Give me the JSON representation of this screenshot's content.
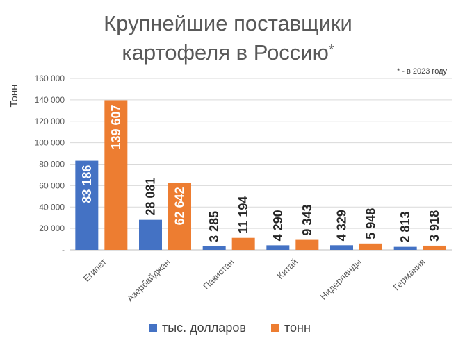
{
  "chart_data": {
    "type": "bar",
    "title_line1": "Крупнейшие поставщики",
    "title_line2": "картофеля в Россию",
    "title_mark": "*",
    "footnote": "* - в 2023 году",
    "ylabel": "Тонн",
    "xlabel": "",
    "ylim": [
      0,
      160000
    ],
    "yticks": [
      0,
      20000,
      40000,
      60000,
      80000,
      100000,
      120000,
      140000,
      160000
    ],
    "ytick_labels": [
      "-",
      "20 000",
      "40 000",
      "60 000",
      "80 000",
      "100 000",
      "120 000",
      "140 000",
      "160 000"
    ],
    "grid": true,
    "legend_position": "bottom",
    "categories": [
      "Египет",
      "Азербайджан",
      "Пакистан",
      "Китай",
      "Нидерланды",
      "Германия"
    ],
    "series": [
      {
        "name": "тыс. долларов",
        "color": "#4472C4",
        "values": [
          83186,
          28081,
          3285,
          4290,
          4329,
          2813
        ],
        "labels": [
          "83 186",
          "28 081",
          "3 285",
          "4 290",
          "4 329",
          "2 813"
        ]
      },
      {
        "name": "тонн",
        "color": "#ED7D31",
        "values": [
          139607,
          62642,
          11194,
          9343,
          5948,
          3918
        ],
        "labels": [
          "139 607",
          "62 642",
          "11 194",
          "9 343",
          "5 948",
          "3 918"
        ]
      }
    ]
  }
}
